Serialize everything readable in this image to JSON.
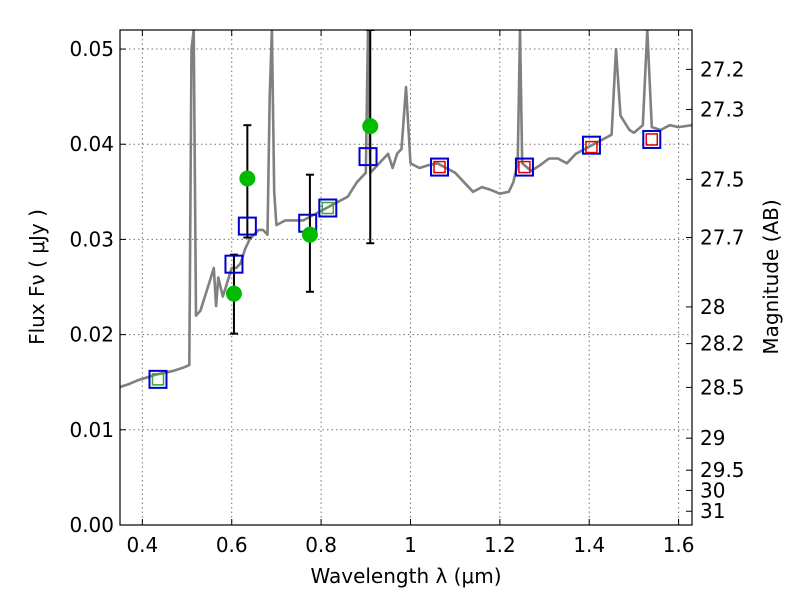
{
  "chart_data": {
    "type": "scatter",
    "xlabel": "Wavelength  λ (μm)",
    "ylabel": "Flux  Fν  ( μJy )",
    "y2label": "Magnitude (AB)",
    "xlim": [
      0.35,
      1.63
    ],
    "ylim": [
      0.0,
      0.052
    ],
    "x_ticks": [
      0.4,
      0.6,
      0.8,
      1.0,
      1.2,
      1.4,
      1.6
    ],
    "x_tick_labels": [
      "0.4",
      "0.6",
      "0.8",
      "1",
      "1.2",
      "1.4",
      "1.6"
    ],
    "y_ticks": [
      0.0,
      0.01,
      0.02,
      0.03,
      0.04,
      0.05
    ],
    "y_tick_labels": [
      "0.00",
      "0.01",
      "0.02",
      "0.03",
      "0.04",
      "0.05"
    ],
    "y2_ticks": [
      {
        "label": "27.2",
        "mag": 27.2
      },
      {
        "label": "27.3",
        "mag": 27.3
      },
      {
        "label": "27.5",
        "mag": 27.5
      },
      {
        "label": "27.7",
        "mag": 27.7
      },
      {
        "label": "28",
        "mag": 28.0
      },
      {
        "label": "28.2",
        "mag": 28.2
      },
      {
        "label": "28.5",
        "mag": 28.5
      },
      {
        "label": "29",
        "mag": 29.0
      },
      {
        "label": "29.5",
        "mag": 29.5
      },
      {
        "label": "30",
        "mag": 30.0
      },
      {
        "label": "31",
        "mag": 31.0
      }
    ],
    "grid": true,
    "colors": {
      "spectrum": "#808080",
      "model_open_square": "#0000cc",
      "green_points": "#00bb00",
      "inner_square_green": "#33aa33",
      "inner_square_red": "#dd0000",
      "errorbar": "#000000"
    },
    "series": [
      {
        "style": "line",
        "points": [
          [
            0.35,
            0.0145
          ],
          [
            0.37,
            0.0148
          ],
          [
            0.39,
            0.0152
          ],
          [
            0.41,
            0.0155
          ],
          [
            0.43,
            0.0158
          ],
          [
            0.45,
            0.016
          ],
          [
            0.47,
            0.0162
          ],
          [
            0.49,
            0.0165
          ],
          [
            0.505,
            0.0168
          ],
          [
            0.51,
            0.05
          ],
          [
            0.515,
            0.052
          ],
          [
            0.52,
            0.022
          ],
          [
            0.53,
            0.0225
          ],
          [
            0.54,
            0.024
          ],
          [
            0.55,
            0.0255
          ],
          [
            0.56,
            0.027
          ],
          [
            0.565,
            0.023
          ],
          [
            0.57,
            0.026
          ],
          [
            0.58,
            0.024
          ],
          [
            0.59,
            0.0255
          ],
          [
            0.6,
            0.027
          ],
          [
            0.61,
            0.027
          ],
          [
            0.62,
            0.0275
          ],
          [
            0.63,
            0.029
          ],
          [
            0.64,
            0.03
          ],
          [
            0.65,
            0.0305
          ],
          [
            0.66,
            0.031
          ],
          [
            0.67,
            0.031
          ],
          [
            0.68,
            0.0305
          ],
          [
            0.685,
            0.045
          ],
          [
            0.69,
            0.052
          ],
          [
            0.695,
            0.035
          ],
          [
            0.7,
            0.0315
          ],
          [
            0.72,
            0.032
          ],
          [
            0.74,
            0.032
          ],
          [
            0.76,
            0.032
          ],
          [
            0.78,
            0.0325
          ],
          [
            0.8,
            0.033
          ],
          [
            0.82,
            0.0335
          ],
          [
            0.84,
            0.034
          ],
          [
            0.86,
            0.0345
          ],
          [
            0.88,
            0.036
          ],
          [
            0.9,
            0.037
          ],
          [
            0.905,
            0.052
          ],
          [
            0.91,
            0.037
          ],
          [
            0.93,
            0.038
          ],
          [
            0.95,
            0.039
          ],
          [
            0.96,
            0.0375
          ],
          [
            0.97,
            0.039
          ],
          [
            0.98,
            0.0395
          ],
          [
            0.99,
            0.046
          ],
          [
            1.0,
            0.038
          ],
          [
            1.02,
            0.0375
          ],
          [
            1.04,
            0.0378
          ],
          [
            1.06,
            0.038
          ],
          [
            1.08,
            0.0375
          ],
          [
            1.1,
            0.037
          ],
          [
            1.12,
            0.036
          ],
          [
            1.14,
            0.035
          ],
          [
            1.16,
            0.0355
          ],
          [
            1.18,
            0.0352
          ],
          [
            1.2,
            0.0348
          ],
          [
            1.22,
            0.035
          ],
          [
            1.23,
            0.036
          ],
          [
            1.24,
            0.038
          ],
          [
            1.245,
            0.052
          ],
          [
            1.25,
            0.038
          ],
          [
            1.27,
            0.0372
          ],
          [
            1.29,
            0.0378
          ],
          [
            1.31,
            0.0385
          ],
          [
            1.33,
            0.0385
          ],
          [
            1.35,
            0.038
          ],
          [
            1.37,
            0.039
          ],
          [
            1.39,
            0.0395
          ],
          [
            1.41,
            0.04
          ],
          [
            1.43,
            0.0405
          ],
          [
            1.45,
            0.041
          ],
          [
            1.46,
            0.05
          ],
          [
            1.47,
            0.043
          ],
          [
            1.49,
            0.0415
          ],
          [
            1.5,
            0.0412
          ],
          [
            1.52,
            0.042
          ],
          [
            1.53,
            0.052
          ],
          [
            1.54,
            0.0418
          ],
          [
            1.56,
            0.0415
          ],
          [
            1.58,
            0.042
          ],
          [
            1.6,
            0.0418
          ],
          [
            1.63,
            0.042
          ]
        ]
      },
      {
        "style": "open_square",
        "color": "#0000cc",
        "points": [
          [
            0.435,
            0.0153
          ],
          [
            0.605,
            0.0274
          ],
          [
            0.635,
            0.0314
          ],
          [
            0.77,
            0.0317
          ],
          [
            0.815,
            0.0333
          ],
          [
            0.905,
            0.0387
          ],
          [
            1.065,
            0.0376
          ],
          [
            1.255,
            0.0376
          ],
          [
            1.405,
            0.0399
          ],
          [
            1.54,
            0.0405
          ]
        ]
      },
      {
        "style": "filled_circle",
        "color": "#00bb00",
        "points": [
          {
            "x": 0.605,
            "y": 0.0243,
            "err": [
              0.0201,
              0.0284
            ]
          },
          {
            "x": 0.635,
            "y": 0.0364,
            "err": [
              0.0302,
              0.042
            ]
          },
          {
            "x": 0.775,
            "y": 0.0305,
            "err": [
              0.0245,
              0.0368
            ]
          },
          {
            "x": 0.91,
            "y": 0.0419,
            "err": [
              0.0296,
              0.052
            ]
          }
        ]
      },
      {
        "style": "inner_square",
        "color": "#33aa33",
        "points": [
          [
            0.435,
            0.0153
          ],
          [
            0.815,
            0.0333
          ]
        ]
      },
      {
        "style": "inner_square",
        "color": "#dd0000",
        "points": [
          [
            1.065,
            0.0376
          ],
          [
            1.255,
            0.0376
          ],
          [
            1.405,
            0.0397
          ],
          [
            1.54,
            0.0405
          ]
        ]
      }
    ]
  }
}
